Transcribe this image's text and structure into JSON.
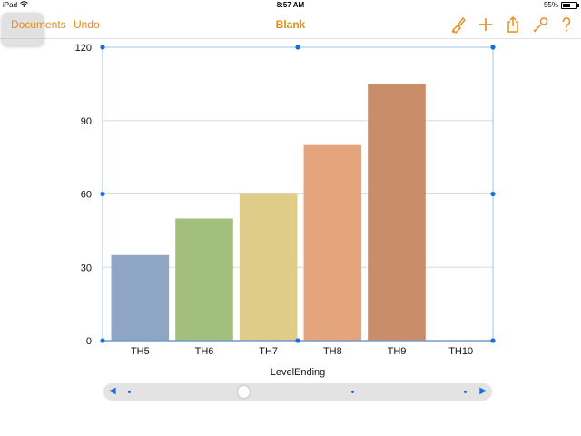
{
  "status_bar": {
    "device": "iPad",
    "time": "8:57 AM",
    "battery": "55%",
    "battery_level": 0.55
  },
  "toolbar": {
    "documents_label": "Documents",
    "undo_label": "Undo",
    "title": "Blank",
    "icons": [
      "paintbrush-icon",
      "plus-icon",
      "share-icon",
      "wrench-icon",
      "help-icon"
    ],
    "accent_color": "#e38d1c"
  },
  "chart_data": {
    "type": "bar",
    "categories": [
      "TH5",
      "TH6",
      "TH7",
      "TH8",
      "TH9",
      "TH10"
    ],
    "values": [
      35,
      50,
      60,
      80,
      105,
      0
    ],
    "colors": [
      "#8ea5c3",
      "#a3bf7d",
      "#dfcc89",
      "#e5a57c",
      "#c98d6a",
      "#b4b4b4"
    ],
    "xlabel": "LevelEnding",
    "ylabel": "",
    "ylim": [
      0,
      120
    ],
    "yticks": [
      0,
      30,
      60,
      90,
      120
    ],
    "grid": true
  },
  "scrubber": {
    "position": 0.36
  }
}
